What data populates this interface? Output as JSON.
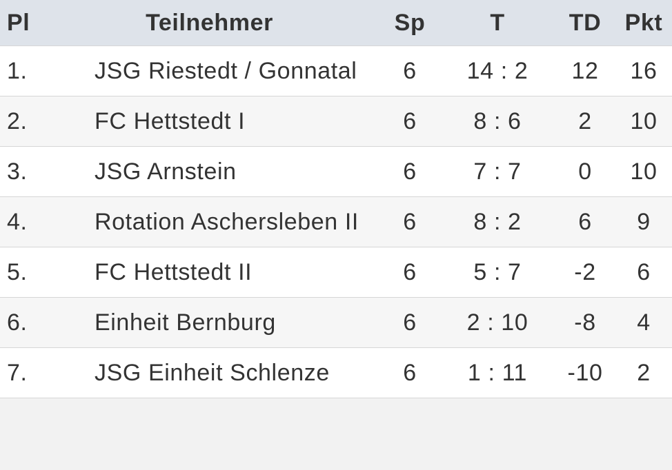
{
  "table": {
    "header": [
      "Pl",
      "Teilnehmer",
      "Sp",
      "T",
      "TD",
      "Pkt"
    ],
    "rows": [
      [
        "1.",
        "JSG Riestedt / Gonnatal",
        "6",
        "14 : 2",
        "12",
        "16"
      ],
      [
        "2.",
        "FC Hettstedt I",
        "6",
        "8 : 6",
        "2",
        "10"
      ],
      [
        "3.",
        "JSG Arnstein",
        "6",
        "7 : 7",
        "0",
        "10"
      ],
      [
        "4.",
        "Rotation Aschersleben II",
        "6",
        "8 : 2",
        "6",
        "9"
      ],
      [
        "5.",
        "FC Hettstedt II",
        "6",
        "5 : 7",
        "-2",
        "6"
      ],
      [
        "6.",
        "Einheit Bernburg",
        "6",
        "2 : 10",
        "-8",
        "4"
      ],
      [
        "7.",
        "JSG Einheit Schlenze",
        "6",
        "1 : 11",
        "-10",
        "2"
      ]
    ]
  }
}
